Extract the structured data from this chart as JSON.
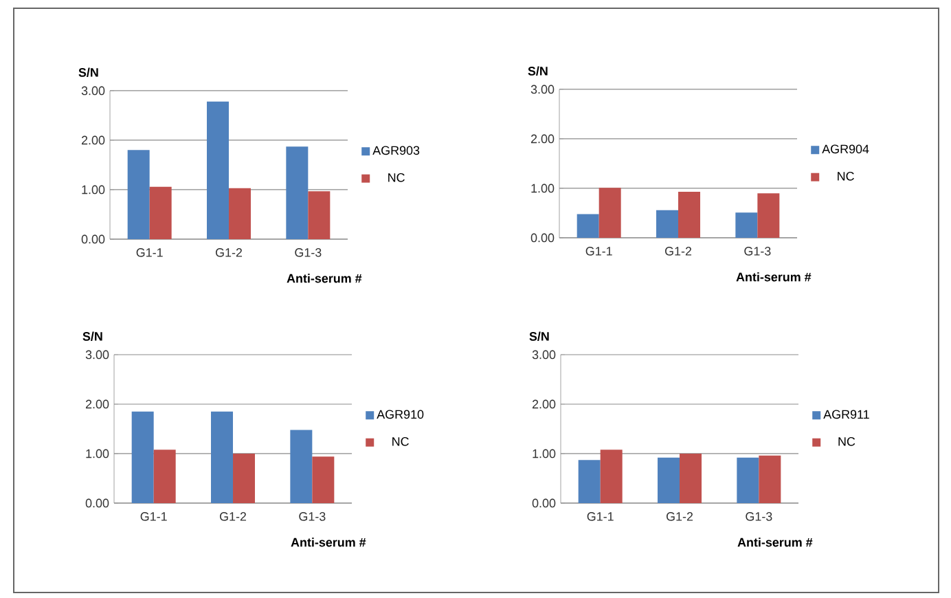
{
  "chart_data": [
    {
      "type": "bar",
      "categories": [
        "G1-1",
        "G1-2",
        "G1-3"
      ],
      "ylabel": "S/N",
      "xlabel": "Anti-serum #",
      "ylim": [
        0,
        3
      ],
      "yticks": [
        {
          "value": 0,
          "label": "0.00"
        },
        {
          "value": 1,
          "label": "1.00"
        },
        {
          "value": 2,
          "label": "2.00"
        },
        {
          "value": 3,
          "label": "3.00"
        }
      ],
      "grid": "y",
      "legend": "right",
      "series": [
        {
          "name": "AGR903",
          "color": "#4f81bd",
          "values": [
            1.8,
            2.78,
            1.87
          ]
        },
        {
          "name": "NC",
          "color": "#c0504d",
          "values": [
            1.06,
            1.03,
            0.97
          ]
        }
      ]
    },
    {
      "type": "bar",
      "categories": [
        "G1-1",
        "G1-2",
        "G1-3"
      ],
      "ylabel": "S/N",
      "xlabel": "Anti-serum #",
      "ylim": [
        0,
        3
      ],
      "yticks": [
        {
          "value": 0,
          "label": "0.00"
        },
        {
          "value": 1,
          "label": "1.00"
        },
        {
          "value": 2,
          "label": "2.00"
        },
        {
          "value": 3,
          "label": "3.00"
        }
      ],
      "grid": "y",
      "legend": "right",
      "series": [
        {
          "name": "AGR904",
          "color": "#4f81bd",
          "values": [
            0.48,
            0.56,
            0.51
          ]
        },
        {
          "name": "NC",
          "color": "#c0504d",
          "values": [
            1.01,
            0.93,
            0.9
          ]
        }
      ]
    },
    {
      "type": "bar",
      "categories": [
        "G1-1",
        "G1-2",
        "G1-3"
      ],
      "ylabel": "S/N",
      "xlabel": "Anti-serum #",
      "ylim": [
        0,
        3
      ],
      "yticks": [
        {
          "value": 0,
          "label": "0.00"
        },
        {
          "value": 1,
          "label": "1.00"
        },
        {
          "value": 2,
          "label": "2.00"
        },
        {
          "value": 3,
          "label": "3.00"
        }
      ],
      "grid": "y",
      "legend": "right",
      "series": [
        {
          "name": "AGR910",
          "color": "#4f81bd",
          "values": [
            1.85,
            1.85,
            1.48
          ]
        },
        {
          "name": "NC",
          "color": "#c0504d",
          "values": [
            1.08,
            1.0,
            0.94
          ]
        }
      ]
    },
    {
      "type": "bar",
      "categories": [
        "G1-1",
        "G1-2",
        "G1-3"
      ],
      "ylabel": "S/N",
      "xlabel": "Anti-serum #",
      "ylim": [
        0,
        3
      ],
      "yticks": [
        {
          "value": 0,
          "label": "0.00"
        },
        {
          "value": 1,
          "label": "1.00"
        },
        {
          "value": 2,
          "label": "2.00"
        },
        {
          "value": 3,
          "label": "3.00"
        }
      ],
      "grid": "y",
      "legend": "right",
      "series": [
        {
          "name": "AGR911",
          "color": "#4f81bd",
          "values": [
            0.87,
            0.92,
            0.92
          ]
        },
        {
          "name": "NC",
          "color": "#c0504d",
          "values": [
            1.08,
            1.0,
            0.96
          ]
        }
      ]
    }
  ]
}
